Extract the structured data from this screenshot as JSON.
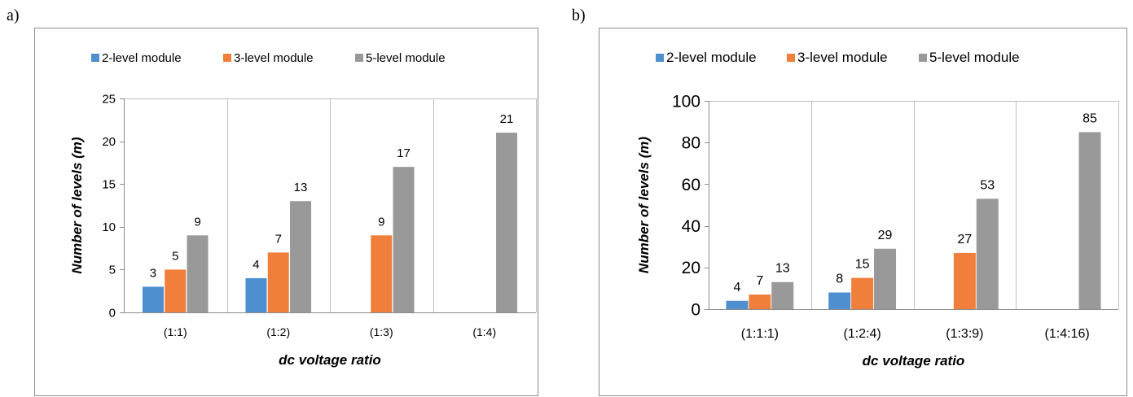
{
  "panels": [
    {
      "label": "a)"
    },
    {
      "label": "b)"
    }
  ],
  "chart_data": [
    {
      "type": "bar",
      "title": "",
      "xlabel": "dc voltage ratio",
      "ylabel": "Number of levels (m)",
      "ylim": [
        0,
        25
      ],
      "yticks": [
        0,
        5,
        10,
        15,
        20,
        25
      ],
      "grid": "on",
      "legend": "top",
      "categories": [
        "(1:1)",
        "(1:2)",
        "(1:3)",
        "(1:4)"
      ],
      "series": [
        {
          "name": "2-level module",
          "color": "#4e8fd0",
          "values": [
            3,
            4,
            null,
            null
          ]
        },
        {
          "name": "3-level module",
          "color": "#f07f3b",
          "values": [
            5,
            7,
            9,
            null
          ]
        },
        {
          "name": "5-level module",
          "color": "#999999",
          "values": [
            9,
            13,
            17,
            21
          ]
        }
      ]
    },
    {
      "type": "bar",
      "title": "",
      "xlabel": "dc voltage ratio",
      "ylabel": "Number of levels (m)",
      "ylim": [
        0,
        100
      ],
      "yticks": [
        0,
        20,
        40,
        60,
        80,
        100
      ],
      "grid": "on",
      "legend": "top",
      "categories": [
        "(1:1:1)",
        "(1:2:4)",
        "(1:3:9)",
        "(1:4:16)"
      ],
      "series": [
        {
          "name": "2-level module",
          "color": "#4e8fd0",
          "values": [
            4,
            8,
            null,
            null
          ]
        },
        {
          "name": "3-level module",
          "color": "#f07f3b",
          "values": [
            7,
            15,
            27,
            null
          ]
        },
        {
          "name": "5-level module",
          "color": "#999999",
          "values": [
            13,
            29,
            53,
            85
          ]
        }
      ]
    }
  ]
}
